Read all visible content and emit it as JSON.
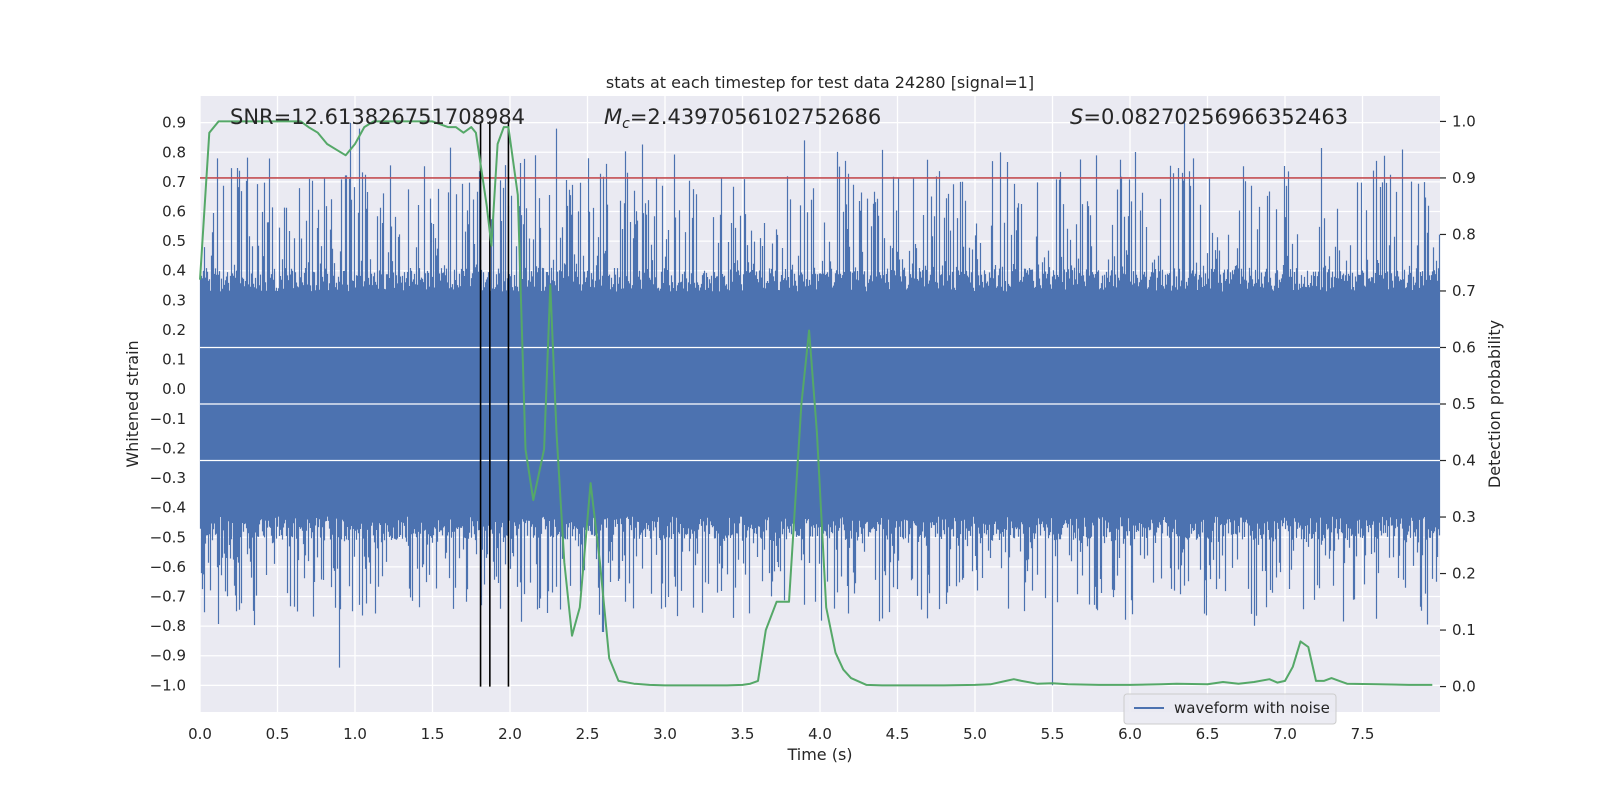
{
  "chart_data": {
    "type": "line",
    "title": "stats at each timestep for test data 24280 [signal=1]",
    "xlabel": "Time (s)",
    "ylabel": "Whitened strain",
    "y2label": "Detection probability",
    "xlim": [
      0.0,
      8.0
    ],
    "ylim": [
      -1.09,
      0.99
    ],
    "y2lim": [
      -0.045,
      1.045
    ],
    "grid": true,
    "xticks": [
      "0.0",
      "0.5",
      "1.0",
      "1.5",
      "2.0",
      "2.5",
      "3.0",
      "3.5",
      "4.0",
      "4.5",
      "5.0",
      "5.5",
      "6.0",
      "6.5",
      "7.0",
      "7.5"
    ],
    "yticks": [
      "0.9",
      "0.8",
      "0.7",
      "0.6",
      "0.5",
      "0.4",
      "0.3",
      "0.2",
      "0.1",
      "0.0",
      "−0.1",
      "−0.2",
      "−0.3",
      "−0.4",
      "−0.5",
      "−0.6",
      "−0.7",
      "−0.8",
      "−0.9",
      "−1.0"
    ],
    "y2ticks": [
      "0.0",
      "0.1",
      "0.2",
      "0.3",
      "0.4",
      "0.5",
      "0.6",
      "0.7",
      "0.8",
      "0.9",
      "1.0"
    ],
    "annotations": {
      "snr_text": "SNR=12.613826751708984",
      "mc_symbol": "M",
      "mc_sub": "c",
      "mc_value": "=2.4397056102752686",
      "s_symbol": "S",
      "s_value": "=0.08270256966352463"
    },
    "legend": {
      "position": "lower-right",
      "label": "waveform with noise"
    },
    "colors": {
      "waveform": "#4c72b0",
      "probability": "#55a868",
      "threshold": "#c44e52",
      "markers": "#000000",
      "background": "#eaeaf2",
      "grid": "#ffffff"
    },
    "threshold_probability": 0.9,
    "marker_times": [
      1.81,
      1.87,
      1.99
    ],
    "waveform": {
      "description_note": "",
      "duration_s": 8.0,
      "envelope": {
        "core_min": -0.43,
        "core_max": 0.33,
        "spike_max": 0.9,
        "spike_min": -0.95
      },
      "notable_peaks": [
        {
          "t": 0.9,
          "y": -0.94
        },
        {
          "t": 0.97,
          "y": 0.9
        },
        {
          "t": 1.03,
          "y": 0.88
        },
        {
          "t": 2.3,
          "y": 0.88
        },
        {
          "t": 2.6,
          "y": -0.82
        },
        {
          "t": 3.9,
          "y": 0.84
        },
        {
          "t": 5.5,
          "y": -1.0
        },
        {
          "t": 6.35,
          "y": 0.9
        }
      ]
    },
    "series": [
      {
        "name": "detection probability",
        "axis": "right",
        "x": [
          0.0,
          0.06,
          0.12,
          0.2,
          0.3,
          0.4,
          0.5,
          0.6,
          0.65,
          0.7,
          0.76,
          0.82,
          0.88,
          0.94,
          1.0,
          1.06,
          1.12,
          1.2,
          1.3,
          1.4,
          1.5,
          1.6,
          1.65,
          1.7,
          1.75,
          1.78,
          1.85,
          1.88,
          1.92,
          1.96,
          1.99,
          2.05,
          2.1,
          2.15,
          2.22,
          2.26,
          2.3,
          2.35,
          2.4,
          2.45,
          2.52,
          2.58,
          2.64,
          2.7,
          2.8,
          2.9,
          3.0,
          3.2,
          3.4,
          3.5,
          3.55,
          3.6,
          3.65,
          3.72,
          3.8,
          3.88,
          3.93,
          3.98,
          4.04,
          4.1,
          4.15,
          4.2,
          4.3,
          4.4,
          4.6,
          4.8,
          5.0,
          5.1,
          5.2,
          5.25,
          5.3,
          5.4,
          5.5,
          5.6,
          5.8,
          6.0,
          6.2,
          6.3,
          6.5,
          6.6,
          6.7,
          6.8,
          6.9,
          6.95,
          7.0,
          7.05,
          7.1,
          7.15,
          7.2,
          7.25,
          7.3,
          7.35,
          7.4,
          7.6,
          7.8,
          7.95
        ],
        "y": [
          0.72,
          0.98,
          1.0,
          1.0,
          1.0,
          1.0,
          1.0,
          1.0,
          1.0,
          0.99,
          0.98,
          0.96,
          0.95,
          0.94,
          0.96,
          0.99,
          1.0,
          1.0,
          1.0,
          1.0,
          1.0,
          0.99,
          0.99,
          0.98,
          0.99,
          0.98,
          0.85,
          0.78,
          0.96,
          0.99,
          0.99,
          0.87,
          0.42,
          0.33,
          0.42,
          0.71,
          0.45,
          0.22,
          0.09,
          0.14,
          0.36,
          0.22,
          0.05,
          0.01,
          0.005,
          0.003,
          0.002,
          0.002,
          0.002,
          0.003,
          0.005,
          0.01,
          0.1,
          0.15,
          0.15,
          0.5,
          0.63,
          0.45,
          0.14,
          0.06,
          0.03,
          0.015,
          0.003,
          0.002,
          0.002,
          0.002,
          0.003,
          0.004,
          0.01,
          0.013,
          0.01,
          0.005,
          0.006,
          0.004,
          0.003,
          0.003,
          0.004,
          0.005,
          0.004,
          0.008,
          0.005,
          0.008,
          0.013,
          0.007,
          0.01,
          0.035,
          0.08,
          0.07,
          0.01,
          0.01,
          0.015,
          0.01,
          0.005,
          0.004,
          0.003,
          0.003
        ]
      }
    ]
  }
}
